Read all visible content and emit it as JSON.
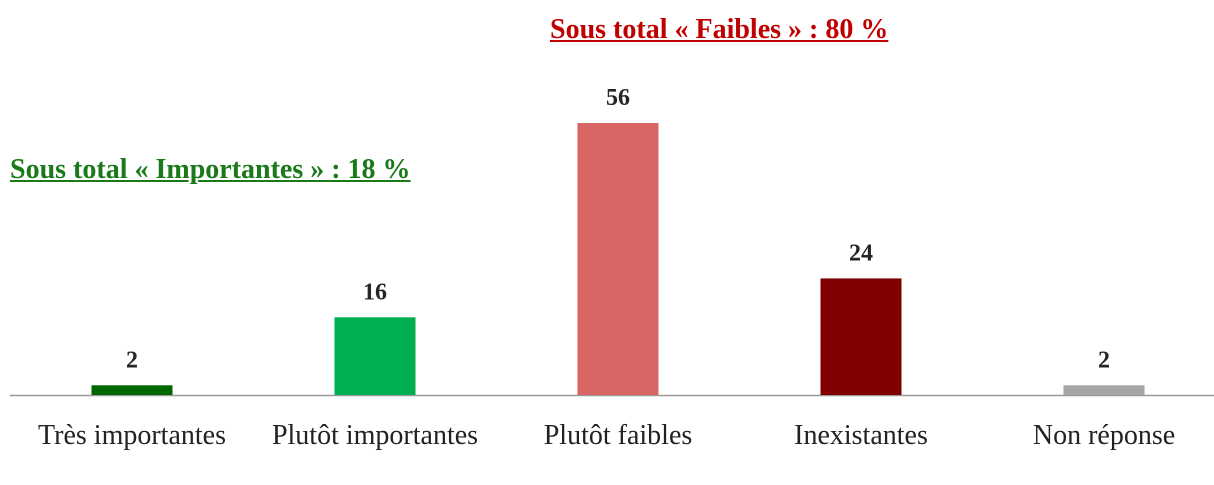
{
  "chart_data": {
    "type": "bar",
    "categories": [
      "Très importantes",
      "Plutôt importantes",
      "Plutôt faibles",
      "Inexistantes",
      "Non réponse"
    ],
    "values": [
      2,
      16,
      56,
      24,
      2
    ],
    "colors": [
      "#006600",
      "#00b050",
      "#da6565",
      "#800000",
      "#a6a6a6"
    ],
    "annotations": [
      {
        "text": "Sous total « Faibles » : 80 %",
        "color": "#c00000"
      },
      {
        "text": "Sous total « Importantes » : 18 %",
        "color": "#1a7a1a"
      }
    ]
  }
}
